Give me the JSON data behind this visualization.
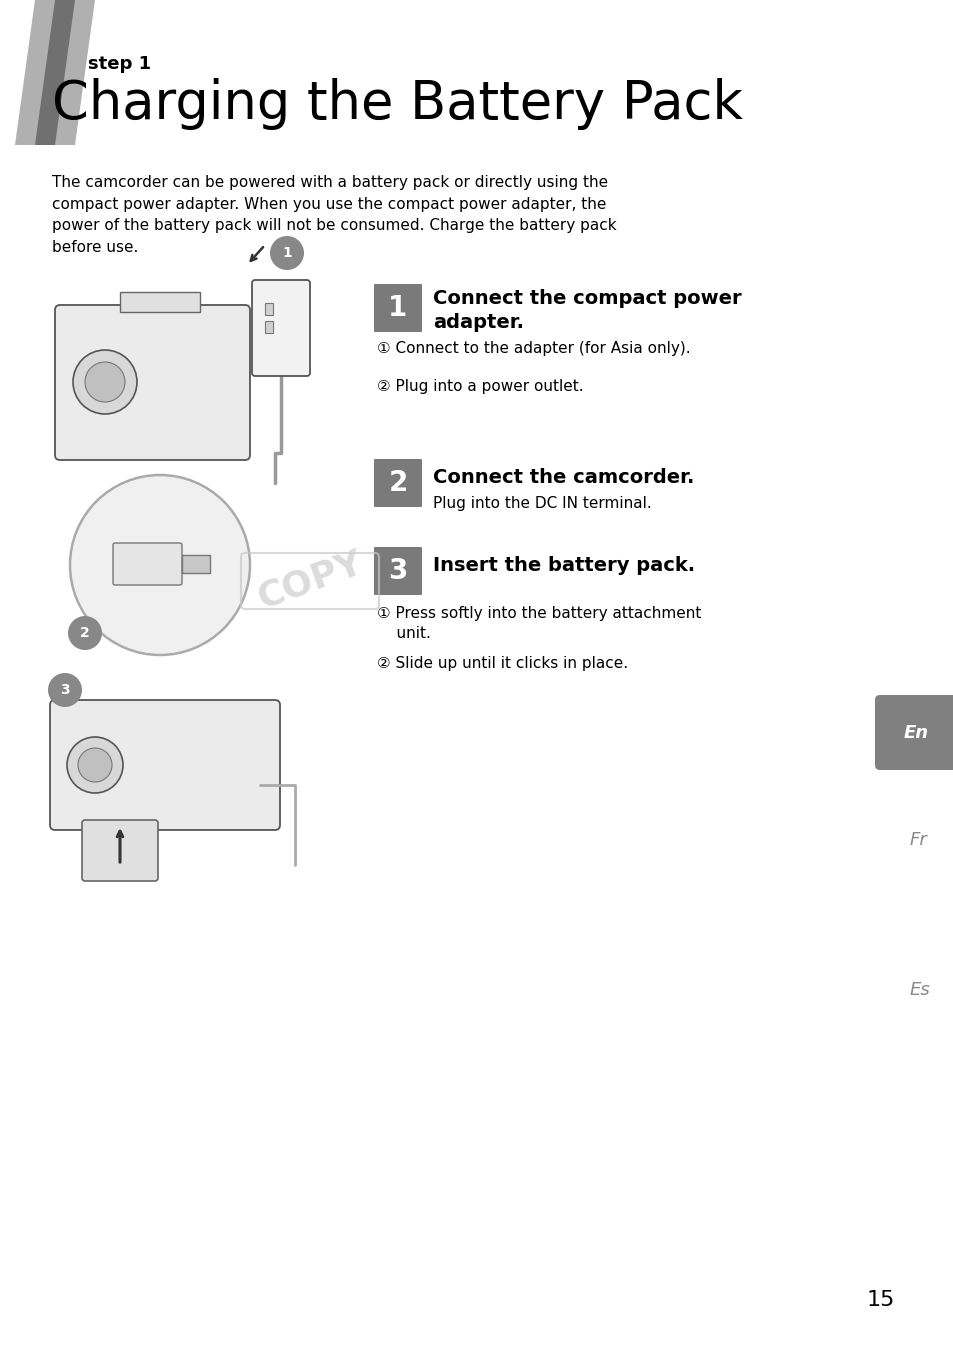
{
  "page_bg": "#ffffff",
  "page_number": "15",
  "step_label": "step 1",
  "title": "Charging the Battery Pack",
  "intro_text": "The camcorder can be powered with a battery pack or directly using the\ncompact power adapter. When you use the compact power adapter, the\npower of the battery pack will not be consumed. Charge the battery pack\nbefore use.",
  "step_badge_color": "#7a7a7a",
  "step_badge_text_color": "#ffffff",
  "steps": [
    {
      "number": "1",
      "heading": "Connect the compact power\nadapter.",
      "sub_items": [
        "① Connect to the adapter (for Asia only).",
        "② Plug into a power outlet."
      ]
    },
    {
      "number": "2",
      "heading": "Connect the camcorder.",
      "sub_heading": "Plug into the DC IN terminal.",
      "sub_items": []
    },
    {
      "number": "3",
      "heading": "Insert the battery pack.",
      "sub_items": [
        "① Press softly into the battery attachment\n    unit.",
        "② Slide up until it clicks in place."
      ]
    }
  ],
  "header_bar_color": "#888888",
  "copy_watermark": "COPY"
}
